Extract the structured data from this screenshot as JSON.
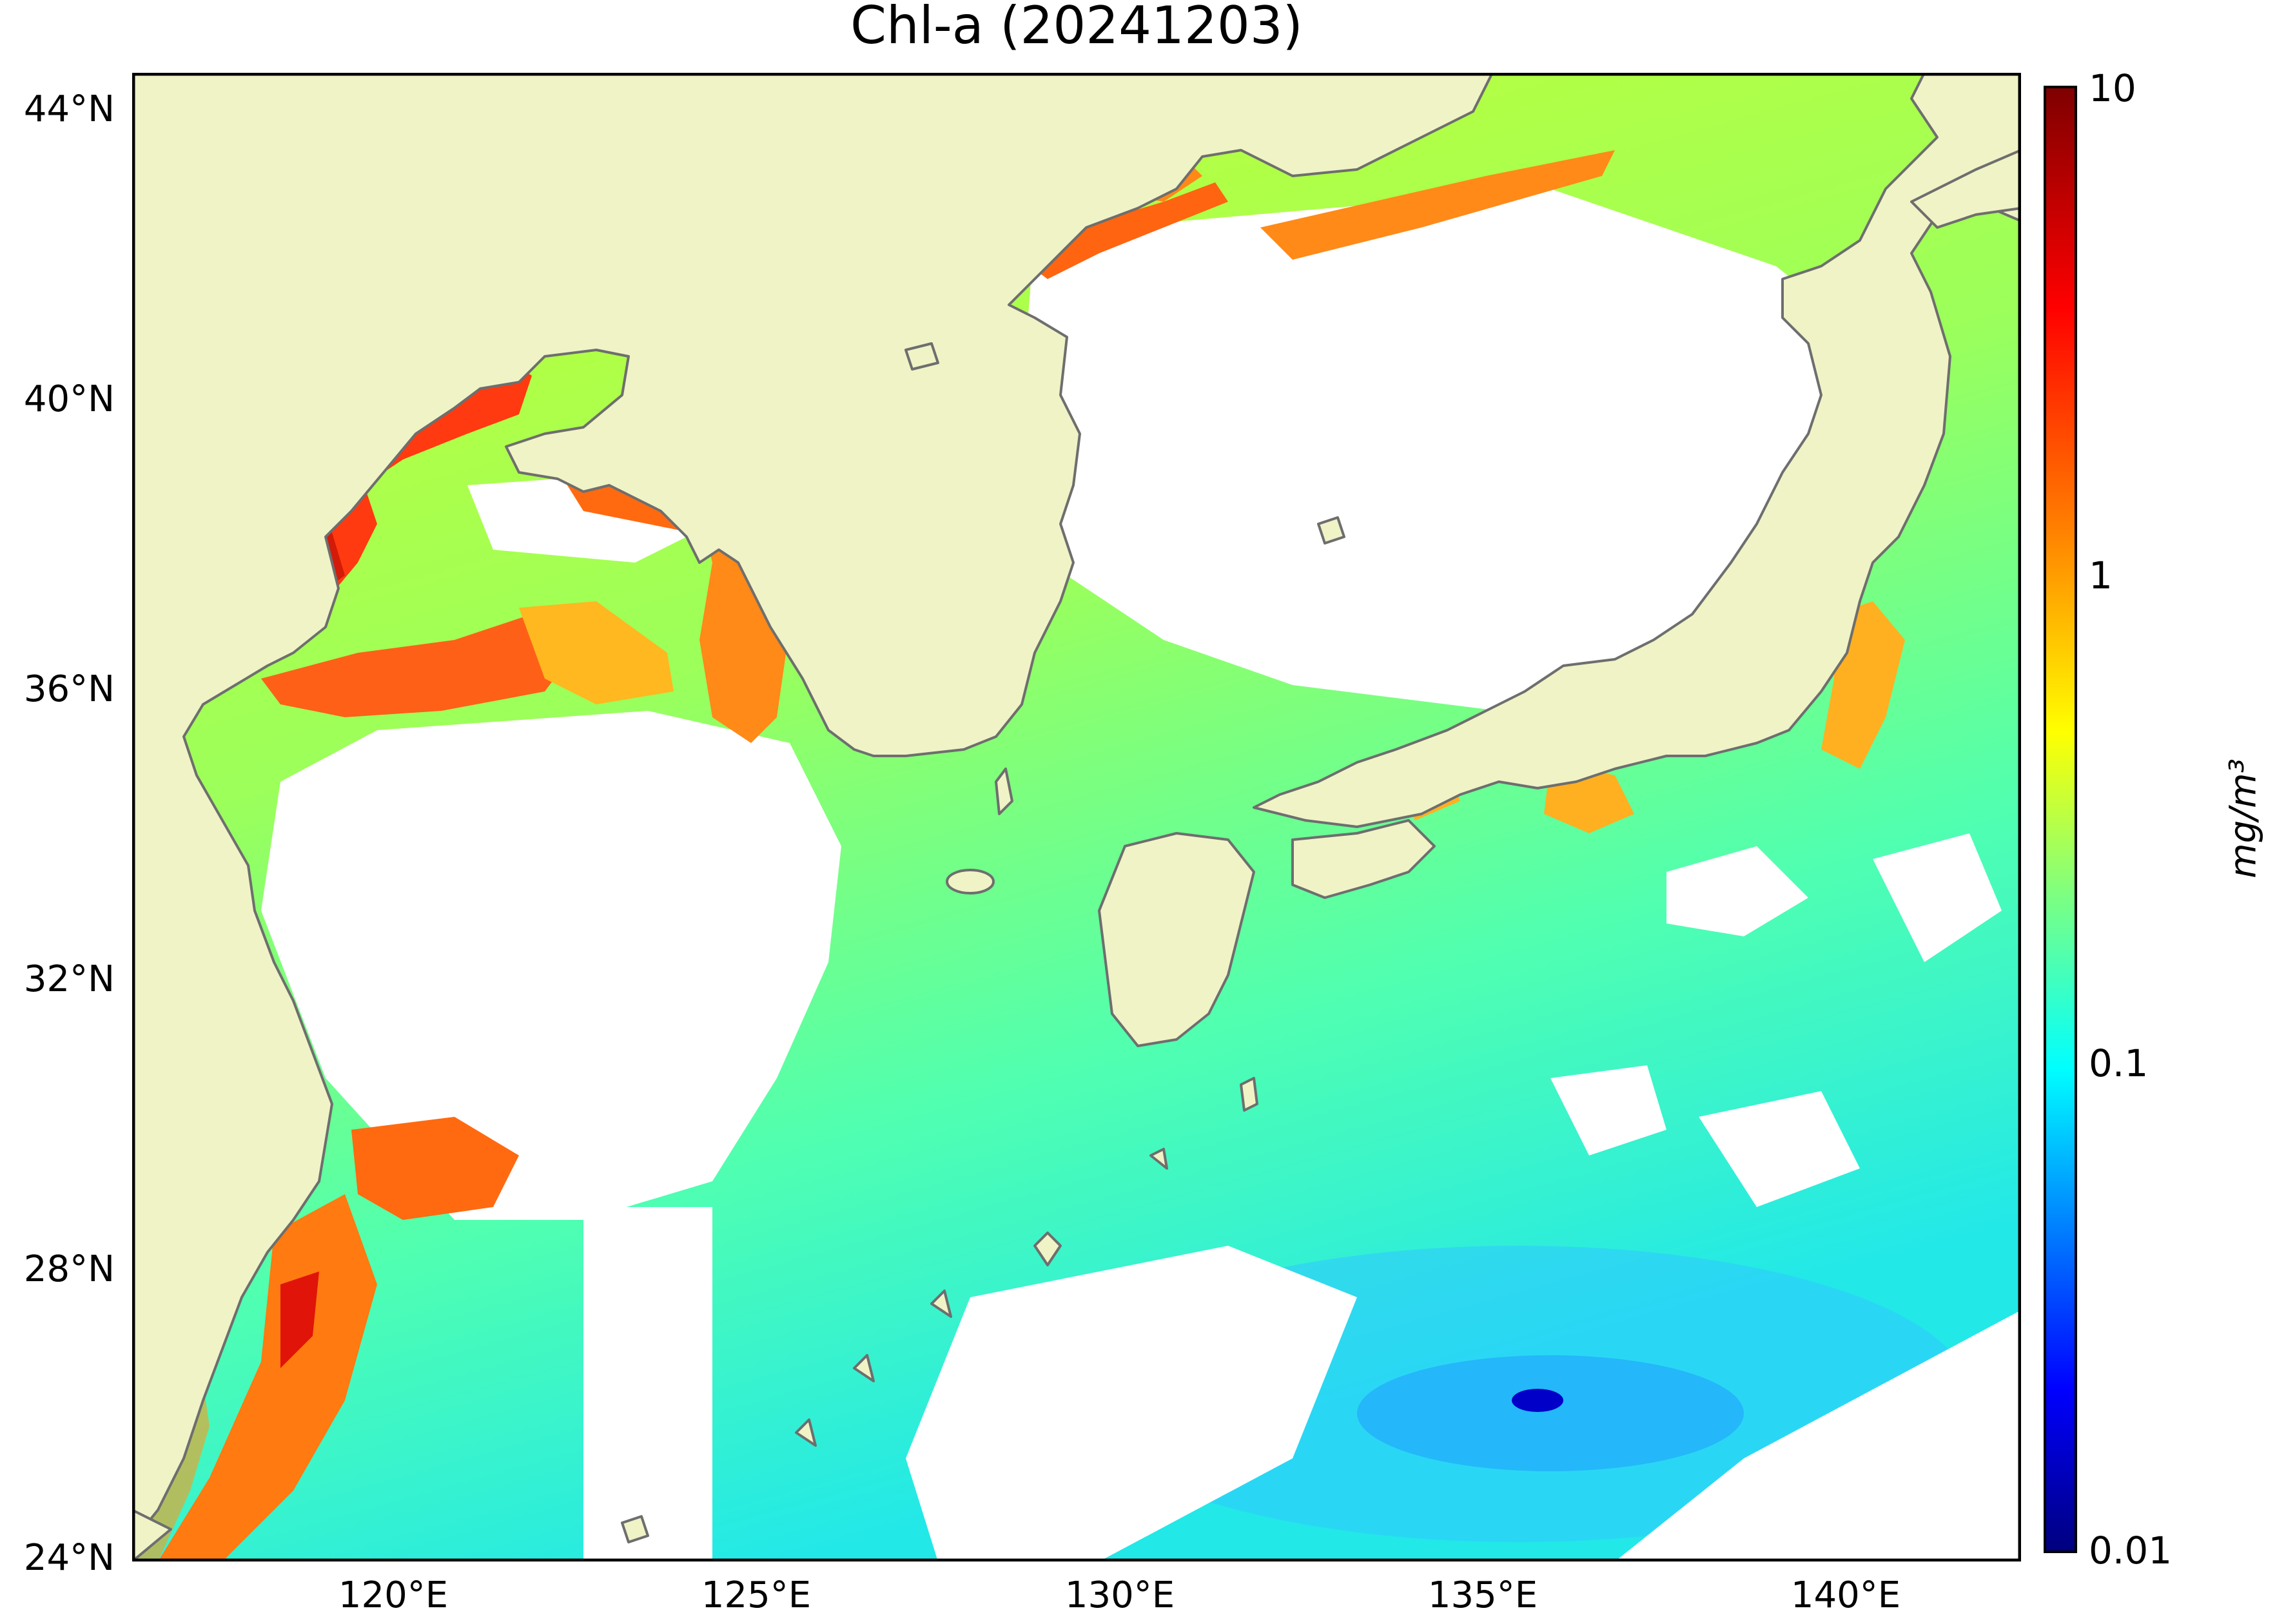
{
  "title": "Chl-a (20241203)",
  "map": {
    "lat_range": [
      24,
      44.5
    ],
    "lon_range": [
      116.5,
      142.5
    ],
    "lat_ticks": [
      "44°N",
      "40°N",
      "36°N",
      "32°N",
      "28°N",
      "24°N"
    ],
    "lon_ticks": [
      "120°E",
      "125°E",
      "130°E",
      "135°E",
      "140°E"
    ],
    "land_color": "#f0f3c6",
    "no_data_color": "#ffffff",
    "coastline_color": "#6e6e6e"
  },
  "colorbar": {
    "scale": "log",
    "range": [
      0.01,
      10
    ],
    "tick_labels": [
      "10",
      "1",
      "0.1",
      "0.01"
    ],
    "unit": "mg/m³",
    "colormap": "jet"
  }
}
